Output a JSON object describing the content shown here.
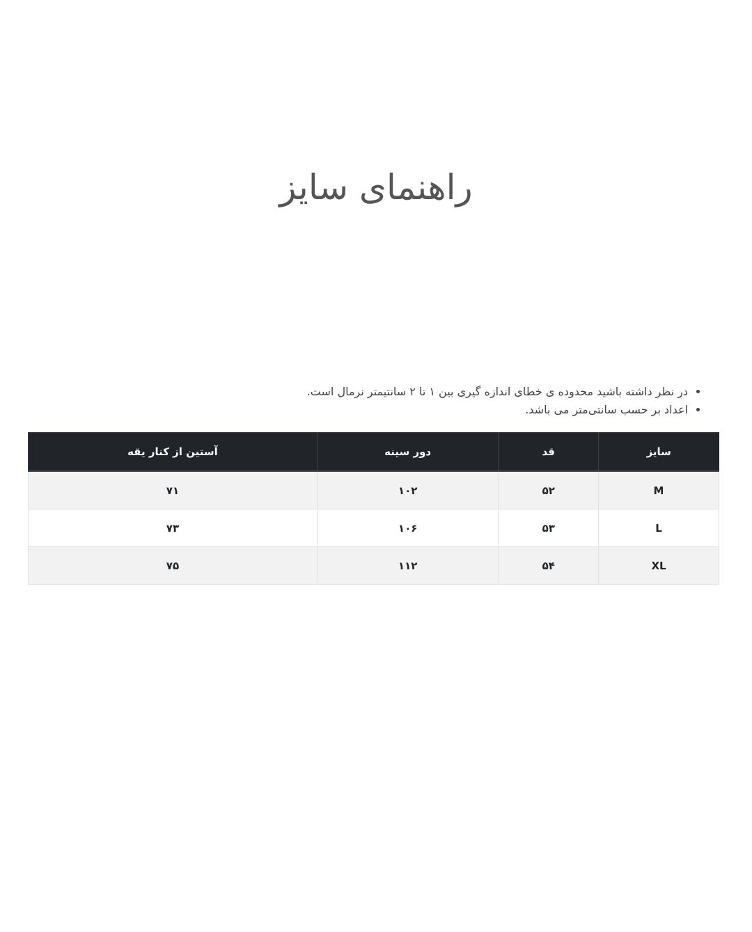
{
  "title": "راهنمای سایز",
  "notes": [
    "در نظر داشته باشید محدوده ی خطای اندازه گیری بین ۱ تا ۲ سانتیمتر نرمال است.",
    "اعداد بر حسب سانتی‌متر می باشد."
  ],
  "table": {
    "headers": [
      "سایز",
      "قد",
      "دور سینه",
      "آستین از کنار یقه"
    ],
    "rows": [
      [
        "M",
        "۵۲",
        "۱۰۲",
        "۷۱"
      ],
      [
        "L",
        "۵۳",
        "۱۰۶",
        "۷۳"
      ],
      [
        "XL",
        "۵۴",
        "۱۱۲",
        "۷۵"
      ]
    ]
  },
  "colors": {
    "header_bg": "#212529",
    "stripe": "#f2f2f2"
  }
}
